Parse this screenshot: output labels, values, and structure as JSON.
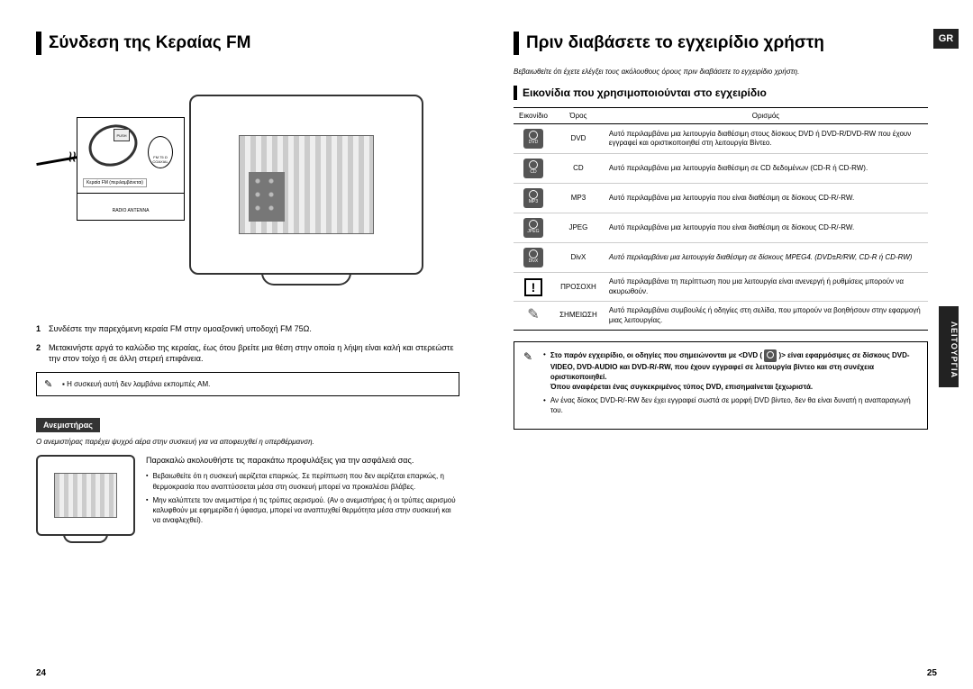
{
  "left": {
    "heading": "Σύνδεση της Κεραίας FM",
    "diagram": {
      "antenna_label": "Κεραία FM (περιλαμβάνεται)",
      "port_label": "FM 75 Ω COAXIAL",
      "port_bottom": "RADIO ANTENNA",
      "plug_label": "PUSH"
    },
    "steps": [
      "Συνδέστε την παρεχόμενη κεραία FM στην ομοαξονική υποδοχή FM 75Ω.",
      "Μετακινήστε αργά το καλώδιο της κεραίας, έως ότου βρείτε μια θέση στην οποία η λήψη είναι καλή και στερεώστε την στον τοίχο ή σε άλλη στερεή επιφάνεια."
    ],
    "note": "Η συσκευή αυτή δεν λαμβάνει εκπομπές AM.",
    "fan": {
      "header": "Ανεμιστήρας",
      "intro": "Ο ανεμιστήρας παρέχει ψυχρό αέρα στην συσκευή για να αποφευχθεί η υπερθέρμανση.",
      "lead": "Παρακαλώ ακολουθήστε τις παρακάτω προφυλάξεις για την ασφάλειά σας.",
      "bullets": [
        "Βεβαιωθείτε ότι η συσκευή αερίζεται επαρκώς. Σε περίπτωση που δεν αερίζεται επαρκώς, η θερμοκρασία που αναπτύσσεται μέσα στη συσκευή μπορεί να προκαλέσει βλάβες.",
        "Μην καλύπτετε τον ανεμιστήρα ή τις τρύπες αερισμού. (Αν ο ανεμιστήρας ή οι τρύπες αερισμού καλυφθούν με εφημερίδα ή ύφασμα, μπορεί να αναπτυχθεί θερμότητα μέσα στην συσκευή και να αναφλεχθεί)."
      ]
    },
    "page_num": "24"
  },
  "right": {
    "lang_tab": "GR",
    "side_label": "ΛΕΙΤΟΥΡΓΙΑ",
    "heading": "Πριν διαβάσετε το εγχειρίδιο χρήστη",
    "subtitle": "Βεβαιωθείτε ότι έχετε ελέγξει τους ακόλουθους όρους πριν διαβάσετε το εγχειρίδιο χρήστη.",
    "h2": "Εικονίδια που χρησιμοποιούνται στο εγχειρίδιο",
    "table": {
      "headers": [
        "Εικονίδιο",
        "Όρος",
        "Ορισμός"
      ],
      "rows": [
        {
          "icon": "DVD",
          "term": "DVD",
          "def": "Αυτό περιλαμβάνει μια λειτουργία διαθέσιμη στους δίσκους DVD ή DVD-R/DVD-RW που έχουν εγγραφεί και οριστικοποιηθεί στη λειτουργία Βίντεο."
        },
        {
          "icon": "CD",
          "term": "CD",
          "def": "Αυτό περιλαμβάνει μια λειτουργία διαθέσιμη σε CD δεδομένων (CD-R ή CD-RW)."
        },
        {
          "icon": "MP3",
          "term": "MP3",
          "def": "Αυτό περιλαμβάνει μια λειτουργία που είναι διαθέσιμη σε δίσκους CD-R/-RW."
        },
        {
          "icon": "JPEG",
          "term": "JPEG",
          "def": "Αυτό περιλαμβάνει μια λειτουργία που είναι διαθέσιμη σε δίσκους CD-R/-RW."
        },
        {
          "icon": "DivX",
          "term": "DivX",
          "def": "Αυτό περιλαμβάνει μια λειτουργία διαθέσιμη σε δίσκους MPEG4. (DVD±R/RW, CD-R ή CD-RW)"
        },
        {
          "icon": "!",
          "term": "ΠΡΟΣΟΧΗ",
          "def": "Αυτό περιλαμβάνει τη περίπτωση που μια λειτουργία είναι ανενεργή ή ρυθμίσεις μπορούν να ακυρωθούν."
        },
        {
          "icon": "pencil",
          "term": "ΣΗΜΕΙΩΣΗ",
          "def": "Αυτό περιλαμβάνει συμβουλές ή οδηγίες στη σελίδα, που μπορούν να βοηθήσουν στην εφαρμογή μιας λειτουργίας."
        }
      ]
    },
    "infobox": {
      "items": [
        {
          "bold": true,
          "text": "Στο παρόν εγχειρίδιο, οι οδηγίες που σημειώνονται με <DVD ( "
        },
        {
          "bold": true,
          "text_after_icon": " )> είναι εφαρμόσιμες σε δίσκους DVD-VIDEO, DVD-AUDIO και DVD-R/-RW, που έχουν εγγραφεί σε λειτουργία βίντεο και στη συνέχεια οριστικοποιηθεί."
        },
        {
          "bold": true,
          "text2": "Όπου αναφέρεται ένας συγκεκριμένος τύπος DVD, επισημαίνεται ξεχωριστά."
        },
        {
          "bold": false,
          "text3": "Αν ένας δίσκος DVD-R/-RW δεν έχει εγγραφεί σωστά σε μορφή DVD βίντεο, δεν θα είναι δυνατή η αναπαραγωγή του."
        }
      ]
    },
    "page_num": "25"
  }
}
